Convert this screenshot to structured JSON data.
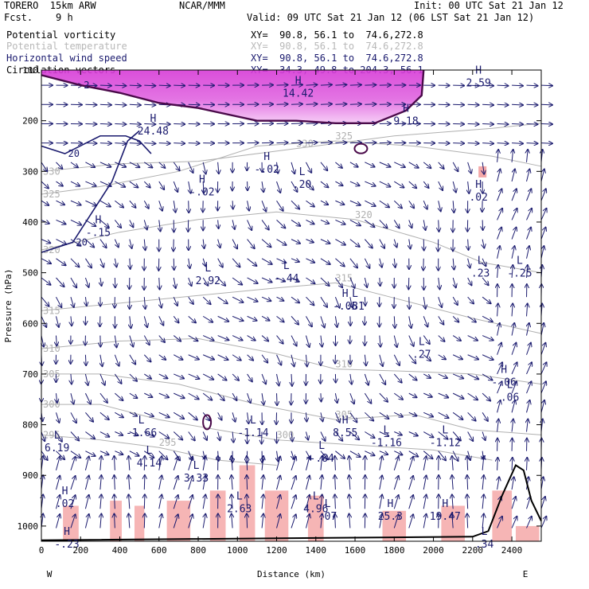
{
  "header": {
    "model": "TORERO  15km ARW",
    "org": "NCAR/MMM",
    "init": "Init: 00 UTC Sat 21 Jan 12",
    "fcst_label": "Fcst.",
    "fcst_value": "9 h",
    "valid": "Valid: 09 UTC Sat 21 Jan 12 (06 LST Sat 21 Jan 12)"
  },
  "legend": [
    {
      "name": "Potential vorticity",
      "xy": "XY=  90.8, 56.1 to  74.6,272.8",
      "color": "#000000"
    },
    {
      "name": "Potential temperature",
      "xy": "XY=  90.8, 56.1 to  74.6,272.8",
      "color": "#b8b8b8"
    },
    {
      "name": "Horizontal wind speed",
      "xy": "XY=  90.8, 56.1 to  74.6,272.8",
      "color": "#1a1a6e"
    },
    {
      "name": "Circulation vectors",
      "xy": "XY=  34.3, 49.8 to 204.3, 56.1",
      "color": "#1a1a6e"
    }
  ],
  "chart_data": {
    "type": "cross-section",
    "xlabel": "Distance (km)",
    "ylabel": "Pressure (hPa)",
    "xlim": [
      0,
      2550
    ],
    "ylim": [
      1030,
      100
    ],
    "x_ticks": [
      0,
      200,
      400,
      600,
      800,
      1000,
      1200,
      1400,
      1600,
      1800,
      2000,
      2200,
      2400
    ],
    "y_ticks": [
      100,
      200,
      300,
      400,
      500,
      600,
      700,
      800,
      900,
      1000
    ],
    "left_end_label": "W",
    "right_end_label": "E",
    "theta_contours": [
      {
        "level": "325",
        "points": [
          [
            0,
            345
          ],
          [
            300,
            330
          ],
          [
            700,
            300
          ],
          [
            1100,
            250
          ],
          [
            1500,
            240
          ],
          [
            1900,
            250
          ],
          [
            2300,
            270
          ],
          [
            2550,
            290
          ]
        ]
      },
      {
        "level": "330",
        "points": [
          [
            0,
            300
          ],
          [
            400,
            285
          ],
          [
            800,
            280
          ],
          [
            1300,
            255
          ],
          [
            1800,
            230
          ],
          [
            2300,
            215
          ],
          [
            2550,
            205
          ]
        ]
      },
      {
        "level": "320",
        "points": [
          [
            0,
            455
          ],
          [
            400,
            420
          ],
          [
            800,
            395
          ],
          [
            1200,
            380
          ],
          [
            1600,
            395
          ],
          [
            2000,
            440
          ],
          [
            2250,
            480
          ],
          [
            2550,
            500
          ]
        ]
      },
      {
        "level": "315",
        "points": [
          [
            0,
            575
          ],
          [
            400,
            560
          ],
          [
            800,
            545
          ],
          [
            1200,
            530
          ],
          [
            1500,
            520
          ],
          [
            1800,
            550
          ],
          [
            2200,
            590
          ],
          [
            2550,
            620
          ]
        ]
      },
      {
        "level": "310",
        "points": [
          [
            0,
            650
          ],
          [
            400,
            635
          ],
          [
            800,
            630
          ],
          [
            1200,
            660
          ],
          [
            1500,
            690
          ],
          [
            1900,
            695
          ],
          [
            2200,
            700
          ],
          [
            2550,
            720
          ]
        ]
      },
      {
        "level": "305",
        "points": [
          [
            0,
            700
          ],
          [
            300,
            700
          ],
          [
            700,
            720
          ],
          [
            1100,
            760
          ],
          [
            1500,
            790
          ],
          [
            1900,
            780
          ],
          [
            2200,
            810
          ],
          [
            2550,
            820
          ]
        ]
      },
      {
        "level": "300",
        "points": [
          [
            0,
            760
          ],
          [
            300,
            760
          ],
          [
            600,
            790
          ],
          [
            900,
            810
          ],
          [
            1200,
            830
          ],
          [
            1600,
            840
          ],
          [
            2000,
            850
          ],
          [
            2300,
            870
          ]
        ]
      },
      {
        "level": "295",
        "points": [
          [
            0,
            820
          ],
          [
            300,
            830
          ],
          [
            600,
            845
          ],
          [
            900,
            870
          ],
          [
            1200,
            880
          ]
        ]
      }
    ],
    "pv_contours": [
      {
        "level": "2",
        "points": [
          [
            0,
            110
          ],
          [
            200,
            130
          ],
          [
            400,
            145
          ],
          [
            600,
            165
          ],
          [
            800,
            175
          ],
          [
            1100,
            200
          ],
          [
            1300,
            200
          ],
          [
            1500,
            205
          ],
          [
            1700,
            205
          ],
          [
            1860,
            180
          ],
          [
            1940,
            150
          ],
          [
            1950,
            100
          ]
        ]
      },
      {
        "level": "20",
        "points": [
          [
            0,
            250
          ],
          [
            120,
            265
          ],
          [
            300,
            230
          ],
          [
            430,
            230
          ],
          [
            500,
            240
          ],
          [
            560,
            265
          ]
        ]
      },
      {
        "level": "20",
        "points": [
          [
            0,
            460
          ],
          [
            160,
            440
          ],
          [
            360,
            320
          ],
          [
            440,
            240
          ],
          [
            500,
            220
          ]
        ]
      }
    ],
    "extrema_labels": [
      {
        "text": "H",
        "value": "14.42",
        "x": 1310,
        "y": 140
      },
      {
        "text": "H",
        "value": "24.48",
        "x": 570,
        "y": 215
      },
      {
        "text": "H",
        "value": "9.18",
        "x": 1860,
        "y": 195
      },
      {
        "text": "H",
        "value": "2.59",
        "x": 2230,
        "y": 120
      },
      {
        "text": "H",
        "value": "-.02",
        "x": 1150,
        "y": 290
      },
      {
        "text": "L",
        "value": ".20",
        "x": 1330,
        "y": 320
      },
      {
        "text": "H",
        "value": "-.02",
        "x": 820,
        "y": 335
      },
      {
        "text": "H",
        "value": ".02",
        "x": 2230,
        "y": 345
      },
      {
        "text": "H",
        "value": "-.15",
        "x": 290,
        "y": 415
      },
      {
        "text": "L",
        "value": "2.92",
        "x": 850,
        "y": 510
      },
      {
        "text": "L",
        "value": "-.44",
        "x": 1250,
        "y": 505
      },
      {
        "text": "H",
        "value": "-.05",
        "x": 1550,
        "y": 560
      },
      {
        "text": "L",
        "value": ".81",
        "x": 1600,
        "y": 560
      },
      {
        "text": "L",
        "value": ".23",
        "x": 2240,
        "y": 495
      },
      {
        "text": "L",
        "value": "-.25",
        "x": 2440,
        "y": 495
      },
      {
        "text": "L",
        "value": ".27",
        "x": 1940,
        "y": 655
      },
      {
        "text": "H",
        "value": "-.06",
        "x": 2360,
        "y": 710
      },
      {
        "text": "L",
        "value": ".06",
        "x": 2390,
        "y": 740
      },
      {
        "text": "L",
        "value": "-1.66",
        "x": 510,
        "y": 810
      },
      {
        "text": "L",
        "value": "-1.14",
        "x": 1080,
        "y": 810
      },
      {
        "text": "H",
        "value": "8.55",
        "x": 1550,
        "y": 810
      },
      {
        "text": "L",
        "value": "-1.16",
        "x": 1760,
        "y": 830
      },
      {
        "text": "L",
        "value": "-1.12",
        "x": 2060,
        "y": 830
      },
      {
        "text": "L",
        "value": "6.19",
        "x": 80,
        "y": 840
      },
      {
        "text": "L",
        "value": "4.14",
        "x": 550,
        "y": 870
      },
      {
        "text": "L",
        "value": "3.33",
        "x": 790,
        "y": 900
      },
      {
        "text": "L",
        "value": "-.84",
        "x": 1430,
        "y": 860
      },
      {
        "text": "H",
        "value": ".02",
        "x": 120,
        "y": 950
      },
      {
        "text": "L",
        "value": "2.63",
        "x": 1010,
        "y": 960
      },
      {
        "text": "L",
        "value": "4.96",
        "x": 1400,
        "y": 960
      },
      {
        "text": "L",
        "value": ".07",
        "x": 1460,
        "y": 975
      },
      {
        "text": "H",
        "value": "25.3",
        "x": 1780,
        "y": 975
      },
      {
        "text": "H",
        "value": "19.47",
        "x": 2060,
        "y": 975
      },
      {
        "text": "L",
        "value": ".34",
        "x": 2260,
        "y": 1030
      },
      {
        "text": "H",
        "value": "-.23",
        "x": 130,
        "y": 1030
      }
    ],
    "terrain_points": [
      [
        0,
        1028
      ],
      [
        2200,
        1021
      ],
      [
        2280,
        1010
      ],
      [
        2350,
        940
      ],
      [
        2420,
        880
      ],
      [
        2460,
        890
      ],
      [
        2500,
        950
      ],
      [
        2550,
        990
      ]
    ]
  }
}
